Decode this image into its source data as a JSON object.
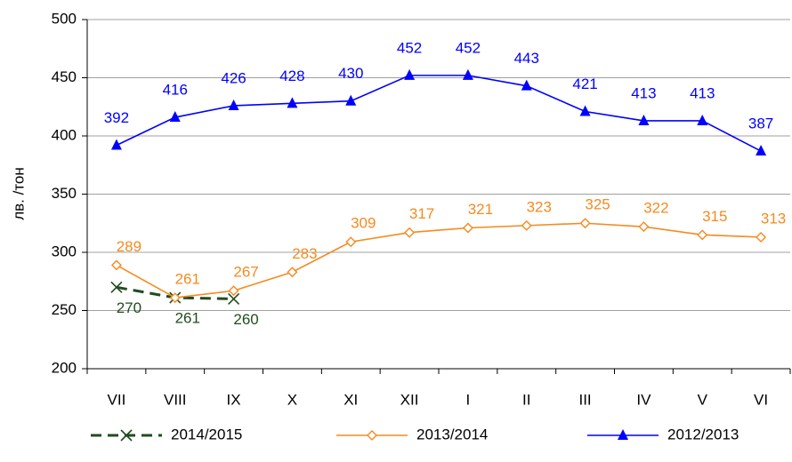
{
  "chart_data": {
    "type": "line",
    "y_label": "лв. /тон",
    "categories": [
      "VII",
      "VIII",
      "IX",
      "X",
      "XI",
      "XII",
      "I",
      "II",
      "III",
      "IV",
      "V",
      "VI"
    ],
    "series": [
      {
        "name": "2014/2015",
        "color": "#1f4d1f",
        "marker": "x",
        "dash": true,
        "values": [
          270,
          261,
          260,
          null,
          null,
          null,
          null,
          null,
          null,
          null,
          null,
          null
        ]
      },
      {
        "name": "2013/2014",
        "color": "#f58a1f",
        "marker": "diamond",
        "dash": false,
        "values": [
          289,
          261,
          267,
          283,
          309,
          317,
          321,
          323,
          325,
          322,
          315,
          313
        ]
      },
      {
        "name": "2012/2013",
        "color": "#0000ff",
        "marker": "triangle",
        "dash": false,
        "values": [
          392,
          416,
          426,
          428,
          430,
          452,
          452,
          443,
          421,
          413,
          413,
          387
        ]
      }
    ],
    "ylim": [
      200,
      500
    ],
    "yticks": [
      200,
      250,
      300,
      350,
      400,
      450,
      500
    ],
    "grid": true
  }
}
